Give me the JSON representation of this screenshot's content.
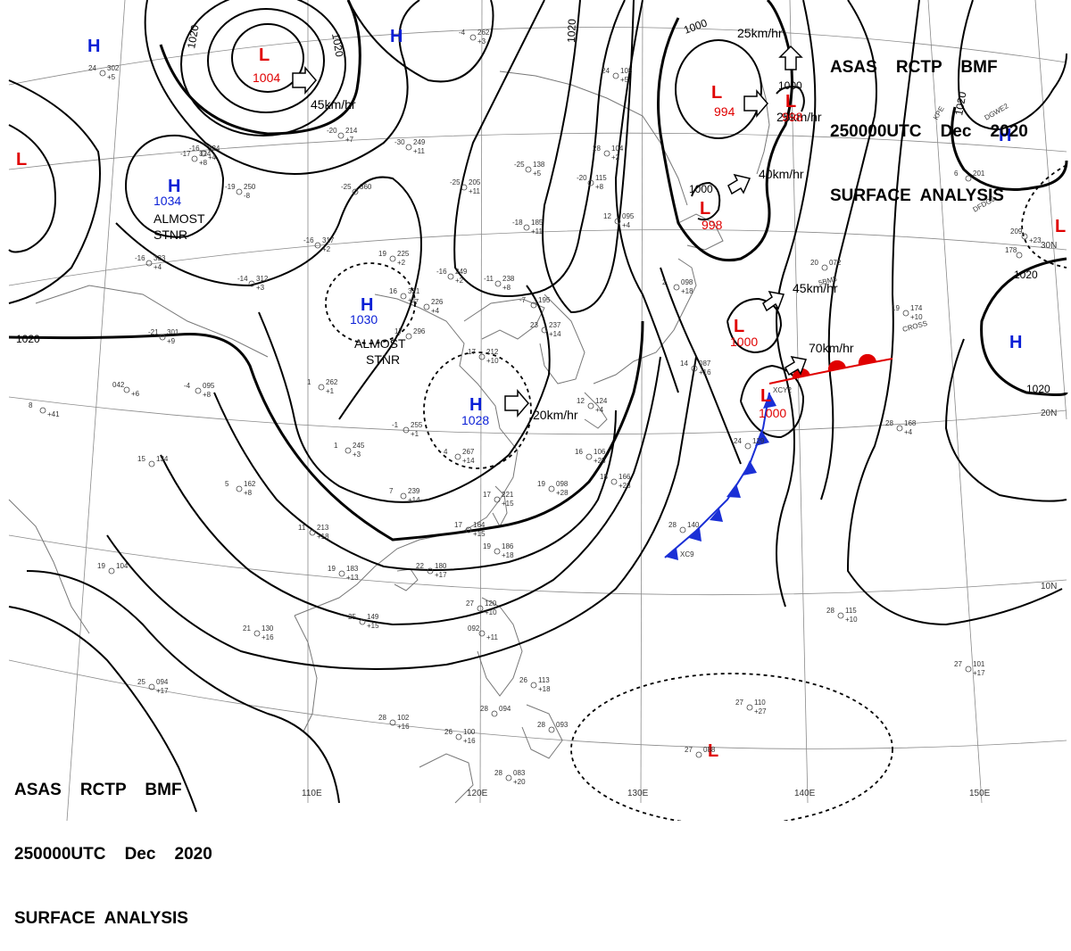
{
  "header": {
    "line1": "ASAS    RCTP    BMF",
    "line2": "250000UTC    Dec    2020",
    "line3": "SURFACE  ANALYSIS"
  },
  "colors": {
    "high": "#0a1fd6",
    "low": "#e00000",
    "cold_front": "#1a2fd6",
    "warm_front": "#e00000",
    "isobar": "#000000",
    "grid": "#8a8a8a",
    "coast": "#777777"
  },
  "longitude_labels": [
    "110E",
    "120E",
    "130E",
    "140E",
    "150E"
  ],
  "latitude_labels": [
    "30N",
    "20N",
    "10N"
  ],
  "isobar_labels": [
    "1020",
    "1020",
    "1020",
    "1000",
    "1000",
    "1000",
    "1020",
    "1020",
    "1020",
    "1020"
  ],
  "pressure_centers": [
    {
      "type": "H",
      "value": ""
    },
    {
      "type": "H",
      "value": ""
    },
    {
      "type": "H",
      "value": "1034"
    },
    {
      "type": "H",
      "value": "1030"
    },
    {
      "type": "H",
      "value": "1028"
    },
    {
      "type": "H",
      "value": ""
    },
    {
      "type": "H",
      "value": ""
    },
    {
      "type": "L",
      "value": "1004"
    },
    {
      "type": "L",
      "value": ""
    },
    {
      "type": "L",
      "value": "994"
    },
    {
      "type": "L",
      "value": "998"
    },
    {
      "type": "L",
      "value": "998"
    },
    {
      "type": "L",
      "value": "1000"
    },
    {
      "type": "L",
      "value": "1000"
    },
    {
      "type": "L",
      "value": ""
    },
    {
      "type": "L",
      "value": ""
    }
  ],
  "annotations": [
    {
      "name": "almost-stnr-1",
      "l1": "ALMOST",
      "l2": "STNR"
    },
    {
      "name": "almost-stnr-2",
      "l1": "ALMOST",
      "l2": "STNR"
    }
  ],
  "motion_arrows": [
    {
      "speed": "45km/hr"
    },
    {
      "speed": "25km/hr"
    },
    {
      "speed": "25km/hr"
    },
    {
      "speed": "40km/hr"
    },
    {
      "speed": "45km/hr"
    },
    {
      "speed": "70km/hr"
    },
    {
      "speed": "20km/hr"
    }
  ],
  "station_plots": [
    {
      "t": "24",
      "p": "302",
      "d": "+5"
    },
    {
      "t": "-17",
      "p": "324",
      "d": "+8"
    },
    {
      "t": "-16",
      "p": "324",
      "d": "+4"
    },
    {
      "t": "-20",
      "p": "214",
      "d": "+7"
    },
    {
      "t": "-30",
      "p": "249",
      "d": "+11"
    },
    {
      "t": "-4",
      "p": "262",
      "d": "+3"
    },
    {
      "t": "-19",
      "p": "250",
      "d": "-8"
    },
    {
      "t": "-25",
      "p": "360",
      "d": ""
    },
    {
      "t": "-25",
      "p": "205",
      "d": "+11"
    },
    {
      "t": "-25",
      "p": "138",
      "d": "+5"
    },
    {
      "t": "-20",
      "p": "115",
      "d": "+8"
    },
    {
      "t": "28",
      "p": "104",
      "d": "+2"
    },
    {
      "t": "24",
      "p": "108",
      "d": "+5"
    },
    {
      "t": "-16",
      "p": "317",
      "d": "+2"
    },
    {
      "t": "19",
      "p": "225",
      "d": "+2"
    },
    {
      "t": "-16",
      "p": "333",
      "d": "+4"
    },
    {
      "t": "-14",
      "p": "312",
      "d": "+3"
    },
    {
      "t": "-18",
      "p": "185",
      "d": "+11"
    },
    {
      "t": "-16",
      "p": "249",
      "d": "+2"
    },
    {
      "t": "-11",
      "p": "238",
      "d": "+8"
    },
    {
      "t": "16",
      "p": "321",
      "d": "+1"
    },
    {
      "t": "-7",
      "p": "226",
      "d": "+4"
    },
    {
      "t": "-7",
      "p": "195",
      "d": ""
    },
    {
      "t": "23",
      "p": "237",
      "d": "+14"
    },
    {
      "t": "12",
      "p": "095",
      "d": "+4"
    },
    {
      "t": "2",
      "p": "098",
      "d": "+18"
    },
    {
      "t": "20",
      "p": "072",
      "d": ""
    },
    {
      "t": "-21",
      "p": "301",
      "d": "+9"
    },
    {
      "t": "17",
      "p": "296",
      "d": ""
    },
    {
      "t": "17",
      "p": "212",
      "d": "+10"
    },
    {
      "t": "-4",
      "p": "095",
      "d": "+8"
    },
    {
      "t": "1",
      "p": "262",
      "d": "+1"
    },
    {
      "t": "042",
      "p": "",
      "d": "+6"
    },
    {
      "t": "8",
      "p": "",
      "d": "+41"
    },
    {
      "t": "-1",
      "p": "255",
      "d": "+1"
    },
    {
      "t": "1",
      "p": "245",
      "d": "+3"
    },
    {
      "t": "4",
      "p": "267",
      "d": "+14"
    },
    {
      "t": "14",
      "p": "087",
      "d": "+16"
    },
    {
      "t": "15",
      "p": "134",
      "d": ""
    },
    {
      "t": "5",
      "p": "162",
      "d": "+8"
    },
    {
      "t": "16",
      "p": "106",
      "d": "+25"
    },
    {
      "t": "12",
      "p": "124",
      "d": "+4"
    },
    {
      "t": "19",
      "p": "098",
      "d": "+28"
    },
    {
      "t": "7",
      "p": "239",
      "d": "+14"
    },
    {
      "t": "17",
      "p": "221",
      "d": "+15"
    },
    {
      "t": "18",
      "p": "166",
      "d": "+23"
    },
    {
      "t": "11",
      "p": "213",
      "d": "+18"
    },
    {
      "t": "17",
      "p": "164",
      "d": "+15"
    },
    {
      "t": "19",
      "p": "186",
      "d": "+18"
    },
    {
      "t": "22",
      "p": "180",
      "d": "+17"
    },
    {
      "t": "19",
      "p": "183",
      "d": "+13"
    },
    {
      "t": "19",
      "p": "104",
      "d": ""
    },
    {
      "t": "25",
      "p": "149",
      "d": "+15"
    },
    {
      "t": "21",
      "p": "130",
      "d": "+16"
    },
    {
      "t": "27",
      "p": "120",
      "d": "+10"
    },
    {
      "t": "092",
      "p": "",
      "d": "+11"
    },
    {
      "t": "25",
      "p": "094",
      "d": "+17"
    },
    {
      "t": "28",
      "p": "102",
      "d": "+16"
    },
    {
      "t": "26",
      "p": "100",
      "d": "+16"
    },
    {
      "t": "28",
      "p": "094",
      "d": ""
    },
    {
      "t": "28",
      "p": "093",
      "d": ""
    },
    {
      "t": "28",
      "p": "083",
      "d": "+20"
    },
    {
      "t": "26",
      "p": "113",
      "d": "+18"
    },
    {
      "t": "28",
      "p": "140",
      "d": ""
    },
    {
      "t": "24",
      "p": "129",
      "d": ""
    },
    {
      "t": "27",
      "p": "110",
      "d": "+27"
    },
    {
      "t": "27",
      "p": "088",
      "d": ""
    },
    {
      "t": "28",
      "p": "115",
      "d": "+10"
    },
    {
      "t": "27",
      "p": "101",
      "d": "+17"
    },
    {
      "t": "28",
      "p": "168",
      "d": "+4"
    },
    {
      "t": "19",
      "p": "174",
      "d": "+10"
    },
    {
      "t": "6",
      "p": "201",
      "d": ""
    },
    {
      "t": "209",
      "p": "",
      "d": "+23"
    },
    {
      "t": "178",
      "p": "",
      "d": ""
    },
    {
      "t": "25",
      "p": "",
      "d": ""
    }
  ],
  "ship_ids": [
    "KPE",
    "DGWE2",
    "DFDG2",
    "CROSS",
    "5BM3",
    "XCY2",
    "XC9"
  ]
}
